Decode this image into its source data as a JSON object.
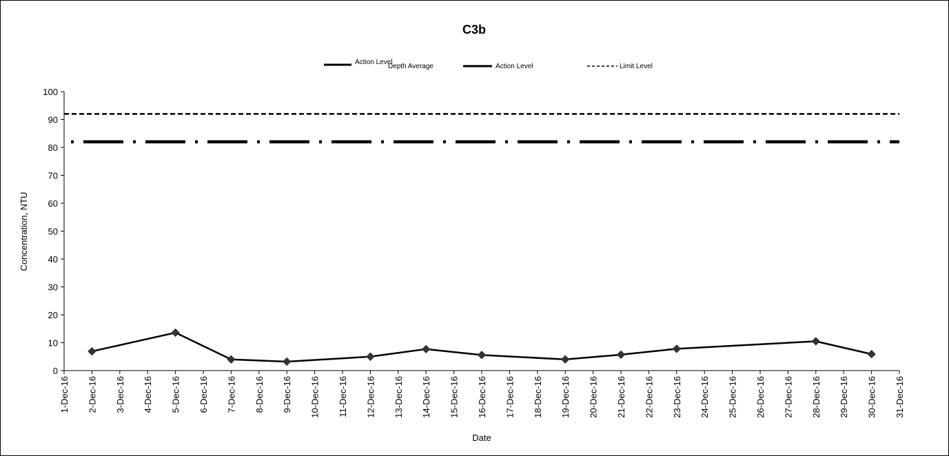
{
  "chart_data": {
    "type": "line",
    "title": "C3b",
    "xlabel": "Date",
    "ylabel": "Concentration, NTU",
    "ylim": [
      0,
      100
    ],
    "yticks": [
      "0",
      "10",
      "20",
      "30",
      "40",
      "50",
      "60",
      "70",
      "80",
      "90",
      "100"
    ],
    "x_ticks": [
      "1-Dec-16",
      "2-Dec-16",
      "3-Dec-16",
      "4-Dec-16",
      "5-Dec-16",
      "6-Dec-16",
      "7-Dec-16",
      "8-Dec-16",
      "9-Dec-16",
      "10-Dec-16",
      "11-Dec-16",
      "12-Dec-16",
      "13-Dec-16",
      "14-Dec-16",
      "15-Dec-16",
      "16-Dec-16",
      "17-Dec-16",
      "18-Dec-16",
      "19-Dec-16",
      "20-Dec-16",
      "21-Dec-16",
      "22-Dec-16",
      "23-Dec-16",
      "24-Dec-16",
      "25-Dec-16",
      "26-Dec-16",
      "27-Dec-16",
      "28-Dec-16",
      "29-Dec-16",
      "30-Dec-16",
      "31-Dec-16"
    ],
    "grid": false,
    "legend": {
      "placement": "top",
      "entries": [
        {
          "label": "Action Level",
          "style": "solid-short",
          "overlap_text": "Depth Average"
        },
        {
          "label": "Action Level",
          "style": "solid-short"
        },
        {
          "label": "Limit Level",
          "style": "dashed"
        }
      ]
    },
    "series": [
      {
        "style": "solid-diamond",
        "color": "#000000",
        "points": [
          {
            "x": "2-Dec-16",
            "y": 6.9
          },
          {
            "x": "5-Dec-16",
            "y": 13.6
          },
          {
            "x": "7-Dec-16",
            "y": 4.0
          },
          {
            "x": "9-Dec-16",
            "y": 3.2
          },
          {
            "x": "12-Dec-16",
            "y": 5.0
          },
          {
            "x": "14-Dec-16",
            "y": 7.7
          },
          {
            "x": "16-Dec-16",
            "y": 5.6
          },
          {
            "x": "19-Dec-16",
            "y": 4.0
          },
          {
            "x": "21-Dec-16",
            "y": 5.7
          },
          {
            "x": "23-Dec-16",
            "y": 7.8
          },
          {
            "x": "28-Dec-16",
            "y": 10.5
          },
          {
            "x": "30-Dec-16",
            "y": 5.9
          }
        ]
      },
      {
        "name": "Action Level",
        "style": "dash-dot",
        "color": "#000000",
        "constant_y": 82
      },
      {
        "name": "Limit Level",
        "style": "dashed",
        "color": "#000000",
        "constant_y": 92
      }
    ]
  }
}
